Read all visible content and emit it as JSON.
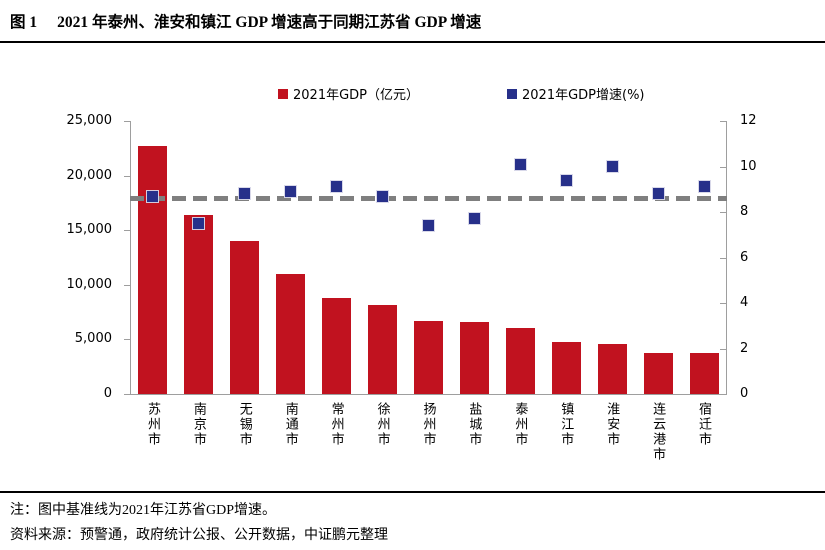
{
  "title": {
    "label": "图 1",
    "text": "2021 年泰州、淮安和镇江 GDP 增速高于同期江苏省 GDP 增速"
  },
  "legend": [
    {
      "label": "2021年GDP（亿元）",
      "color": "#c1121f",
      "marker": "square"
    },
    {
      "label": "2021年GDP增速(%)",
      "color": "#27308a",
      "marker": "square"
    }
  ],
  "notes": {
    "note": "注：图中基准线为2021年江苏省GDP增速。",
    "source": "资料来源：预警通，政府统计公报、公开数据，中证鹏元整理"
  },
  "colors": {
    "bar": "#c1121f",
    "marker": "#27308a",
    "baseline": "#7f7f7f",
    "axis": "#9e9e9e"
  },
  "chart_data": {
    "type": "bar",
    "subtype": "bar+scatter combo, dual axis",
    "categories": [
      "苏州市",
      "南京市",
      "无锡市",
      "南通市",
      "常州市",
      "徐州市",
      "扬州市",
      "盐城市",
      "泰州市",
      "镇江市",
      "淮安市",
      "连云港市",
      "宿迁市"
    ],
    "series": [
      {
        "name": "2021年GDP（亿元）",
        "type": "bar",
        "axis": "left",
        "color": "#c1121f",
        "values": [
          22718,
          16355,
          14003,
          11027,
          8808,
          8117,
          6696,
          6617,
          6025,
          4763,
          4550,
          3728,
          3719
        ]
      },
      {
        "name": "2021年GDP增速(%)",
        "type": "scatter",
        "axis": "right",
        "color": "#27308a",
        "values": [
          8.7,
          7.5,
          8.8,
          8.9,
          9.1,
          8.7,
          7.4,
          7.7,
          10.1,
          9.4,
          10.0,
          8.8,
          9.1
        ]
      }
    ],
    "baseline": {
      "value": 8.6,
      "color": "#7f7f7f",
      "style": "dashed",
      "meaning": "2021年江苏省GDP增速"
    },
    "left_axis": {
      "min": 0,
      "max": 25000,
      "step": 5000,
      "tick_labels": [
        "0",
        "5,000",
        "10,000",
        "15,000",
        "20,000",
        "25,000"
      ]
    },
    "right_axis": {
      "min": 0,
      "max": 12,
      "step": 2,
      "tick_labels": [
        "0",
        "2",
        "4",
        "6",
        "8",
        "10",
        "12"
      ]
    },
    "grid": false,
    "legend_position": "top-center"
  }
}
